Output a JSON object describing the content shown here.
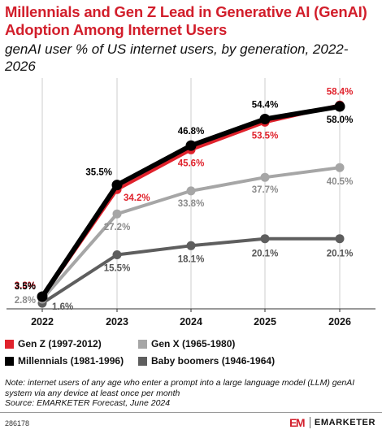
{
  "title": "Millennials and Gen Z Lead in Generative AI (GenAI) Adoption Among Internet Users",
  "subtitle": "genAI user % of US internet users, by generation, 2022-2026",
  "chart_data": {
    "type": "line",
    "title": "Millennials and Gen Z Lead in Generative AI (GenAI) Adoption Among Internet Users",
    "subtitle": "genAI user % of US internet users, by generation, 2022-2026",
    "x": [
      "2022",
      "2023",
      "2024",
      "2025",
      "2026"
    ],
    "ylim": [
      0,
      65
    ],
    "grid": "horizontal",
    "legend_position": "bottom",
    "series": [
      {
        "name": "Gen Z (1997-2012)",
        "color": "#e0222c",
        "values": [
          3.3,
          34.2,
          45.6,
          53.5,
          58.4
        ],
        "labels": [
          "3.3%",
          "34.2%",
          "45.6%",
          "53.5%",
          "58.4%"
        ]
      },
      {
        "name": "Millennials (1981-1996)",
        "color": "#000000",
        "values": [
          3.5,
          35.5,
          46.8,
          54.4,
          58.0
        ],
        "labels": [
          "3.5%",
          "35.5%",
          "46.8%",
          "54.4%",
          "58.0%"
        ]
      },
      {
        "name": "Gen X (1965-1980)",
        "color": "#a6a6a6",
        "values": [
          2.8,
          27.2,
          33.8,
          37.7,
          40.5
        ],
        "labels": [
          "2.8%",
          "27.2%",
          "33.8%",
          "37.7%",
          "40.5%"
        ]
      },
      {
        "name": "Baby boomers (1946-1964)",
        "color": "#5e5e5e",
        "values": [
          1.6,
          15.5,
          18.1,
          20.1,
          20.1
        ],
        "labels": [
          "1.6%",
          "15.5%",
          "18.1%",
          "20.1%",
          "20.1%"
        ]
      }
    ]
  },
  "legend": [
    {
      "label": "Gen Z (1997-2012)",
      "color": "#e0222c"
    },
    {
      "label": "Gen X (1965-1980)",
      "color": "#a6a6a6"
    },
    {
      "label": "Millennials (1981-1996)",
      "color": "#000000"
    },
    {
      "label": "Baby boomers (1946-1964)",
      "color": "#5e5e5e"
    }
  ],
  "note": "Note: internet users of any age who enter a prompt into a large language model (LLM) genAI system via any device at least once per month",
  "source": "Source: EMARKETER Forecast, June 2024",
  "chart_id": "286178",
  "brand": {
    "logo": "EM",
    "name": "EMARKETER",
    "logo_color": "#d21e2b"
  }
}
